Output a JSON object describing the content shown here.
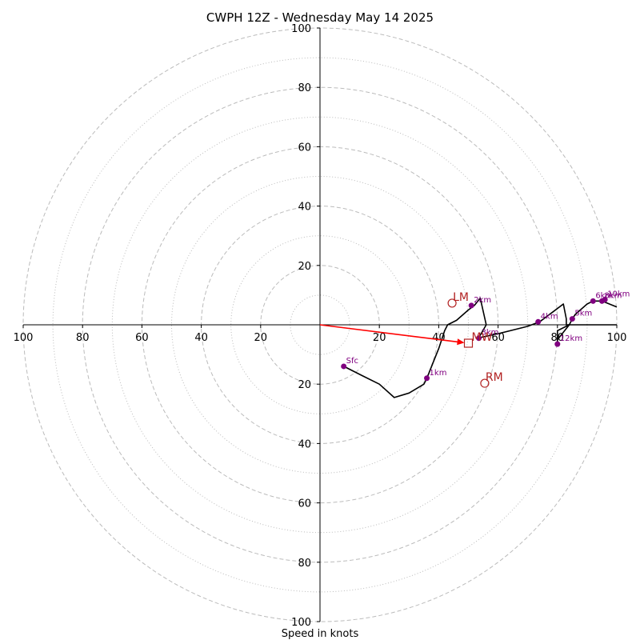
{
  "chart_data": {
    "type": "hodograph",
    "title": "CWPH 12Z - Wednesday May 14 2025",
    "xlabel": "Speed in knots",
    "max_speed": 100,
    "ring_step": 20,
    "tick_labels": [
      "100",
      "80",
      "60",
      "40",
      "20",
      "20",
      "40",
      "60",
      "80",
      "100"
    ],
    "ytick_labels": [
      "100",
      "80",
      "60",
      "40",
      "20",
      "20",
      "40",
      "60",
      "80",
      "100"
    ],
    "grid": true,
    "colors": {
      "trace": "#000000",
      "height_marker": "#800080",
      "motion": "#b22222",
      "mean_wind_arrow": "#ff0000",
      "grid": "#bbbbbb"
    },
    "trace": [
      [
        8,
        -14
      ],
      [
        14,
        -17
      ],
      [
        20,
        -20
      ],
      [
        25,
        -24.5
      ],
      [
        30,
        -23
      ],
      [
        35,
        -20
      ],
      [
        36,
        -18
      ],
      [
        38,
        -13
      ],
      [
        40,
        -8
      ],
      [
        42,
        -2
      ],
      [
        43,
        0
      ],
      [
        46,
        1.5
      ],
      [
        50,
        5
      ],
      [
        52,
        6.5
      ],
      [
        54,
        9
      ],
      [
        56,
        0
      ],
      [
        54,
        -3.5
      ],
      [
        53,
        -4.5
      ],
      [
        60,
        -3
      ],
      [
        70,
        -0.5
      ],
      [
        74,
        1
      ],
      [
        78,
        4
      ],
      [
        82,
        7
      ],
      [
        83,
        2
      ],
      [
        83,
        0
      ],
      [
        83.5,
        0
      ],
      [
        84,
        0
      ],
      [
        80,
        -2
      ],
      [
        80,
        -6
      ],
      [
        80,
        -5
      ],
      [
        84,
        0
      ],
      [
        85,
        2
      ],
      [
        86,
        3.5
      ],
      [
        90,
        7
      ],
      [
        92,
        8
      ],
      [
        94,
        8
      ],
      [
        95,
        8
      ],
      [
        100,
        6
      ]
    ],
    "extra_segment": [
      [
        83.5,
        0
      ],
      [
        100,
        0
      ]
    ],
    "height_markers": [
      {
        "label": "Sfc",
        "u": 8,
        "v": -14
      },
      {
        "label": "1km",
        "u": 36,
        "v": -18
      },
      {
        "label": "2km",
        "u": 51,
        "v": 6.5
      },
      {
        "label": "3km",
        "u": 53.5,
        "v": -4.5
      },
      {
        "label": "4km",
        "u": 73.5,
        "v": 1
      },
      {
        "label": "5km",
        "u": 85,
        "v": 2
      },
      {
        "label": "6km",
        "u": 92,
        "v": 8
      },
      {
        "label": "8km",
        "u": 95,
        "v": 8
      },
      {
        "label": "10km",
        "u": 96,
        "v": 8.5
      },
      {
        "label": "12km",
        "u": 80,
        "v": -6.5
      }
    ],
    "storm_motion": [
      {
        "label": "LM",
        "u": 44.5,
        "v": 7.3
      },
      {
        "label": "RM",
        "u": 55.5,
        "v": -19.7
      }
    ],
    "mean_wind": {
      "label": "MW",
      "u": 50,
      "v": -6.2
    }
  }
}
